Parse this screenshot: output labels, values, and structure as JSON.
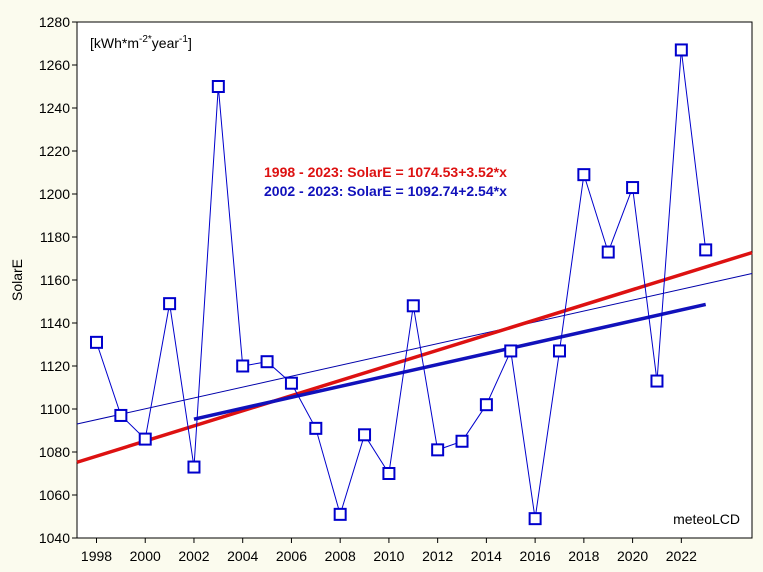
{
  "chart_data": {
    "type": "line",
    "ylabel": "SolarE",
    "xlabel": "",
    "unit_label": {
      "prefix": "[kWh*m",
      "exp1": "-2*",
      "mid": "year",
      "exp2": "-1",
      "suffix": "]"
    },
    "credit": "meteoLCD",
    "xlim": [
      1997.2,
      2024.9
    ],
    "ylim": [
      1040,
      1280
    ],
    "xticks": [
      1998,
      2000,
      2002,
      2004,
      2006,
      2008,
      2010,
      2012,
      2014,
      2016,
      2018,
      2020,
      2022
    ],
    "yticks": [
      1040,
      1060,
      1080,
      1100,
      1120,
      1140,
      1160,
      1180,
      1200,
      1220,
      1240,
      1260,
      1280
    ],
    "series": [
      {
        "name": "SolarE",
        "color": "#0000cc",
        "x": [
          1998,
          1999,
          2000,
          2001,
          2002,
          2003,
          2004,
          2005,
          2006,
          2007,
          2008,
          2009,
          2010,
          2011,
          2012,
          2013,
          2014,
          2015,
          2016,
          2017,
          2018,
          2019,
          2020,
          2021,
          2022,
          2023
        ],
        "values": [
          1131,
          1097,
          1086,
          1149,
          1073,
          1250,
          1120,
          1122,
          1112,
          1091,
          1051,
          1088,
          1070,
          1148,
          1081,
          1085,
          1102,
          1127,
          1049,
          1127,
          1209,
          1173,
          1203,
          1113,
          1267,
          1174
        ]
      }
    ],
    "fits": [
      {
        "label": "1998 - 2023:  SolarE = 1074.53+3.52*x",
        "color": "#dd1111",
        "intercept": 1074.53,
        "slope": 3.52,
        "x_from": 1997.2,
        "x_to": 2024.9,
        "x0": 1997
      },
      {
        "label": "2002 - 2023:  SolarE = 1092.74+2.54*x",
        "color": "#1111bb",
        "intercept": 1092.74,
        "slope": 2.54,
        "x_from": 2002,
        "x_to": 2023,
        "x0": 2001
      }
    ],
    "smooth_line": {
      "color": "#0000aa",
      "x_from": 1997.2,
      "x_to": 2024.9,
      "y_from": 1093,
      "y_to": 1163
    }
  }
}
